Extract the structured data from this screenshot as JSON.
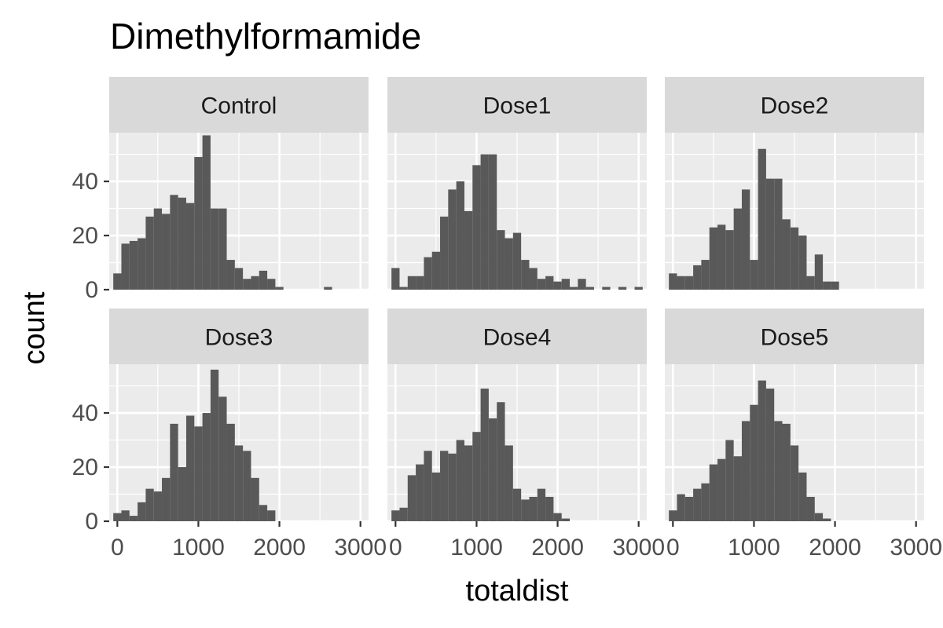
{
  "chart_data": {
    "type": "bar",
    "title": "Dimethylformamide",
    "xlabel": "totaldist",
    "ylabel": "count",
    "bin_width": 100,
    "xlim": [
      -100,
      3100
    ],
    "ylim": [
      0,
      58
    ],
    "x_ticks": [
      0,
      1000,
      2000,
      3000
    ],
    "x_tick_labels": [
      "0",
      "1000",
      "2000",
      "3000"
    ],
    "y_ticks": [
      0,
      20,
      40
    ],
    "y_tick_labels": [
      "0",
      "20",
      "40"
    ],
    "grid": true,
    "bar_color": "#595959",
    "panel_background": "#ebebeb",
    "strip_background": "#d9d9d9",
    "grid_color": "#ffffff",
    "panels": [
      {
        "name": "Control",
        "bins": [
          {
            "x": 0,
            "count": 6
          },
          {
            "x": 100,
            "count": 17
          },
          {
            "x": 200,
            "count": 18
          },
          {
            "x": 300,
            "count": 19
          },
          {
            "x": 400,
            "count": 27
          },
          {
            "x": 500,
            "count": 30
          },
          {
            "x": 600,
            "count": 28
          },
          {
            "x": 700,
            "count": 35
          },
          {
            "x": 800,
            "count": 34
          },
          {
            "x": 900,
            "count": 32
          },
          {
            "x": 1000,
            "count": 49
          },
          {
            "x": 1100,
            "count": 57
          },
          {
            "x": 1200,
            "count": 30
          },
          {
            "x": 1300,
            "count": 30
          },
          {
            "x": 1400,
            "count": 11
          },
          {
            "x": 1500,
            "count": 8
          },
          {
            "x": 1600,
            "count": 4
          },
          {
            "x": 1700,
            "count": 5
          },
          {
            "x": 1800,
            "count": 7
          },
          {
            "x": 1900,
            "count": 4
          },
          {
            "x": 2000,
            "count": 1
          },
          {
            "x": 2600,
            "count": 1
          }
        ]
      },
      {
        "name": "Dose1",
        "bins": [
          {
            "x": 0,
            "count": 8
          },
          {
            "x": 100,
            "count": 1
          },
          {
            "x": 200,
            "count": 5
          },
          {
            "x": 300,
            "count": 5
          },
          {
            "x": 400,
            "count": 12
          },
          {
            "x": 500,
            "count": 14
          },
          {
            "x": 600,
            "count": 27
          },
          {
            "x": 700,
            "count": 37
          },
          {
            "x": 800,
            "count": 40
          },
          {
            "x": 900,
            "count": 29
          },
          {
            "x": 1000,
            "count": 46
          },
          {
            "x": 1100,
            "count": 50
          },
          {
            "x": 1200,
            "count": 50
          },
          {
            "x": 1300,
            "count": 22
          },
          {
            "x": 1400,
            "count": 19
          },
          {
            "x": 1500,
            "count": 21
          },
          {
            "x": 1600,
            "count": 11
          },
          {
            "x": 1700,
            "count": 8
          },
          {
            "x": 1800,
            "count": 4
          },
          {
            "x": 1900,
            "count": 5
          },
          {
            "x": 2000,
            "count": 3
          },
          {
            "x": 2100,
            "count": 4
          },
          {
            "x": 2200,
            "count": 1
          },
          {
            "x": 2300,
            "count": 4
          },
          {
            "x": 2400,
            "count": 1
          },
          {
            "x": 2600,
            "count": 1
          },
          {
            "x": 2800,
            "count": 1
          },
          {
            "x": 3000,
            "count": 1
          }
        ]
      },
      {
        "name": "Dose2",
        "bins": [
          {
            "x": 0,
            "count": 6
          },
          {
            "x": 100,
            "count": 5
          },
          {
            "x": 200,
            "count": 5
          },
          {
            "x": 300,
            "count": 9
          },
          {
            "x": 400,
            "count": 11
          },
          {
            "x": 500,
            "count": 23
          },
          {
            "x": 600,
            "count": 24
          },
          {
            "x": 700,
            "count": 22
          },
          {
            "x": 800,
            "count": 30
          },
          {
            "x": 900,
            "count": 37
          },
          {
            "x": 1000,
            "count": 11
          },
          {
            "x": 1100,
            "count": 52
          },
          {
            "x": 1200,
            "count": 41
          },
          {
            "x": 1300,
            "count": 41
          },
          {
            "x": 1400,
            "count": 26
          },
          {
            "x": 1500,
            "count": 23
          },
          {
            "x": 1600,
            "count": 20
          },
          {
            "x": 1700,
            "count": 5
          },
          {
            "x": 1800,
            "count": 13
          },
          {
            "x": 1900,
            "count": 3
          },
          {
            "x": 2000,
            "count": 3
          }
        ]
      },
      {
        "name": "Dose3",
        "bins": [
          {
            "x": 0,
            "count": 3
          },
          {
            "x": 100,
            "count": 4
          },
          {
            "x": 200,
            "count": 2
          },
          {
            "x": 300,
            "count": 7
          },
          {
            "x": 400,
            "count": 12
          },
          {
            "x": 500,
            "count": 11
          },
          {
            "x": 600,
            "count": 16
          },
          {
            "x": 700,
            "count": 36
          },
          {
            "x": 800,
            "count": 20
          },
          {
            "x": 900,
            "count": 39
          },
          {
            "x": 1000,
            "count": 35
          },
          {
            "x": 1100,
            "count": 40
          },
          {
            "x": 1200,
            "count": 56
          },
          {
            "x": 1300,
            "count": 46
          },
          {
            "x": 1400,
            "count": 36
          },
          {
            "x": 1500,
            "count": 28
          },
          {
            "x": 1600,
            "count": 26
          },
          {
            "x": 1700,
            "count": 16
          },
          {
            "x": 1800,
            "count": 6
          },
          {
            "x": 1900,
            "count": 4
          }
        ]
      },
      {
        "name": "Dose4",
        "bins": [
          {
            "x": 0,
            "count": 4
          },
          {
            "x": 100,
            "count": 5
          },
          {
            "x": 200,
            "count": 17
          },
          {
            "x": 300,
            "count": 21
          },
          {
            "x": 400,
            "count": 26
          },
          {
            "x": 500,
            "count": 18
          },
          {
            "x": 600,
            "count": 26
          },
          {
            "x": 700,
            "count": 25
          },
          {
            "x": 800,
            "count": 30
          },
          {
            "x": 900,
            "count": 28
          },
          {
            "x": 1000,
            "count": 33
          },
          {
            "x": 1100,
            "count": 49
          },
          {
            "x": 1200,
            "count": 38
          },
          {
            "x": 1300,
            "count": 44
          },
          {
            "x": 1400,
            "count": 28
          },
          {
            "x": 1500,
            "count": 12
          },
          {
            "x": 1600,
            "count": 8
          },
          {
            "x": 1700,
            "count": 9
          },
          {
            "x": 1800,
            "count": 12
          },
          {
            "x": 1900,
            "count": 9
          },
          {
            "x": 2000,
            "count": 3
          },
          {
            "x": 2100,
            "count": 1
          }
        ]
      },
      {
        "name": "Dose5",
        "bins": [
          {
            "x": 0,
            "count": 4
          },
          {
            "x": 100,
            "count": 10
          },
          {
            "x": 200,
            "count": 9
          },
          {
            "x": 300,
            "count": 12
          },
          {
            "x": 400,
            "count": 14
          },
          {
            "x": 500,
            "count": 21
          },
          {
            "x": 600,
            "count": 23
          },
          {
            "x": 700,
            "count": 30
          },
          {
            "x": 800,
            "count": 24
          },
          {
            "x": 900,
            "count": 37
          },
          {
            "x": 1000,
            "count": 43
          },
          {
            "x": 1100,
            "count": 52
          },
          {
            "x": 1200,
            "count": 49
          },
          {
            "x": 1300,
            "count": 37
          },
          {
            "x": 1400,
            "count": 36
          },
          {
            "x": 1500,
            "count": 28
          },
          {
            "x": 1600,
            "count": 18
          },
          {
            "x": 1700,
            "count": 9
          },
          {
            "x": 1800,
            "count": 3
          },
          {
            "x": 1900,
            "count": 1
          }
        ]
      }
    ]
  }
}
